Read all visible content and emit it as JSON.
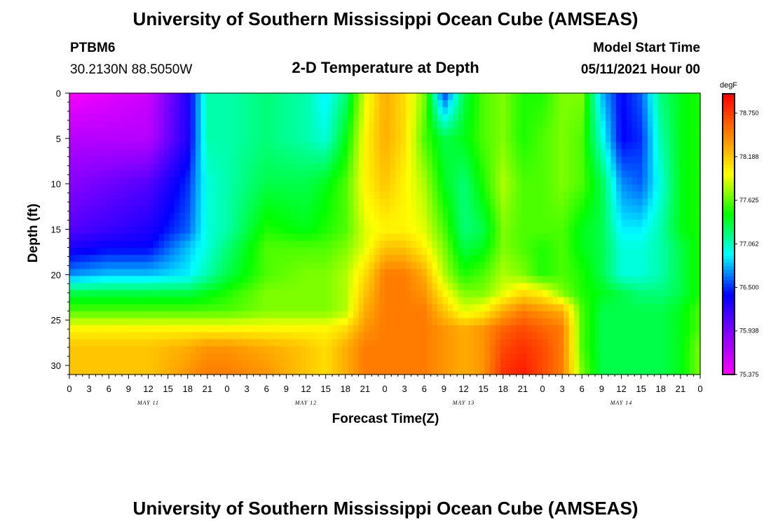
{
  "page": {
    "title_top": "University of Southern Mississippi Ocean Cube (AMSEAS)",
    "title_bottom": "University of Southern Mississippi Ocean Cube (AMSEAS)",
    "station_id": "PTBM6",
    "location": "30.2130N  88.5050W",
    "plot_title": "2-D Temperature at Depth",
    "model_start_label": "Model Start Time",
    "model_start_value": "05/11/2021 Hour 00"
  },
  "chart_data": {
    "type": "heatmap",
    "title": "2-D Temperature at Depth",
    "xlabel": "Forecast Time(Z)",
    "ylabel": "Depth (ft)",
    "xlim": [
      0,
      96
    ],
    "ylim": [
      31,
      0
    ],
    "y_ticks": [
      0,
      5,
      10,
      15,
      20,
      25,
      30
    ],
    "x_ticks": [
      0,
      3,
      6,
      9,
      12,
      15,
      18,
      21,
      24,
      27,
      30,
      33,
      36,
      39,
      42,
      45,
      48,
      51,
      54,
      57,
      60,
      63,
      66,
      69,
      72,
      75,
      78,
      81,
      84,
      87,
      90,
      93,
      96
    ],
    "x_tick_labels": [
      "0",
      "3",
      "6",
      "9",
      "12",
      "15",
      "18",
      "21",
      "0",
      "3",
      "6",
      "9",
      "12",
      "15",
      "18",
      "21",
      "0",
      "3",
      "6",
      "9",
      "12",
      "15",
      "18",
      "21",
      "0",
      "3",
      "6",
      "9",
      "12",
      "15",
      "18",
      "21",
      "0"
    ],
    "date_labels": [
      {
        "text": "MAY 11",
        "hour": 12
      },
      {
        "text": "MAY 12",
        "hour": 36
      },
      {
        "text": "MAY 13",
        "hour": 60
      },
      {
        "text": "MAY 14",
        "hour": 84
      }
    ],
    "colorbar": {
      "unit": "degF",
      "min": 75.375,
      "max": 79.0,
      "tick_values": [
        78.75,
        78.188,
        77.625,
        77.062,
        76.5,
        75.938,
        75.375
      ],
      "tick_labels": [
        "78.750",
        "78.188",
        "77.625",
        "77.062",
        "76.500",
        "75.938",
        "75.375"
      ],
      "colors": [
        "#ff00ff",
        "#8a00ff",
        "#0000ff",
        "#00ffff",
        "#00ff00",
        "#ffff00",
        "#ff8000",
        "#ff0000"
      ]
    },
    "depths": [
      0,
      5,
      10,
      15,
      17,
      20,
      22,
      24,
      26,
      28,
      31
    ],
    "hours": [
      0,
      6,
      12,
      18,
      21,
      24,
      30,
      36,
      39,
      42,
      45,
      48,
      51,
      54,
      57,
      60,
      63,
      66,
      69,
      72,
      75,
      78,
      81,
      84,
      87,
      90,
      93,
      96
    ],
    "temps": [
      [
        75.4,
        75.5,
        75.6,
        76.3,
        77.1,
        77.1,
        77.2,
        77.1,
        76.9,
        77.2,
        77.9,
        78.3,
        78.1,
        77.7,
        76.5,
        77.3,
        77.6,
        77.7,
        77.5,
        77.5,
        77.7,
        77.7,
        76.8,
        76.4,
        76.6,
        77.2,
        77.4,
        77.5
      ],
      [
        75.7,
        75.7,
        75.7,
        76.3,
        77.1,
        77.1,
        77.2,
        77.1,
        77.0,
        77.4,
        78.0,
        78.3,
        78.1,
        77.6,
        77.3,
        77.4,
        77.6,
        77.7,
        77.5,
        77.6,
        77.7,
        77.6,
        77.0,
        76.4,
        76.5,
        77.1,
        77.4,
        77.5
      ],
      [
        75.9,
        76.0,
        76.1,
        76.5,
        77.0,
        77.1,
        77.3,
        77.3,
        77.4,
        77.6,
        78.0,
        78.2,
        78.0,
        77.8,
        77.4,
        77.2,
        77.5,
        77.8,
        77.6,
        77.6,
        77.7,
        77.6,
        77.3,
        76.7,
        76.6,
        77.0,
        77.4,
        77.5
      ],
      [
        76.1,
        76.2,
        76.3,
        76.6,
        77.0,
        77.1,
        77.5,
        77.4,
        77.5,
        77.6,
        77.9,
        78.0,
        78.0,
        77.9,
        77.6,
        77.2,
        77.3,
        77.7,
        77.6,
        77.6,
        77.6,
        77.4,
        77.3,
        76.9,
        76.9,
        77.1,
        77.4,
        77.5
      ],
      [
        76.3,
        76.4,
        76.4,
        76.8,
        77.0,
        77.2,
        77.6,
        77.6,
        77.6,
        77.7,
        77.9,
        78.2,
        78.2,
        78.0,
        77.7,
        77.3,
        77.4,
        77.7,
        77.6,
        77.5,
        77.6,
        77.4,
        77.3,
        77.0,
        77.0,
        77.1,
        77.3,
        77.5
      ],
      [
        76.7,
        76.8,
        76.8,
        76.9,
        77.1,
        77.3,
        77.6,
        77.7,
        77.7,
        77.8,
        78.1,
        78.5,
        78.5,
        78.3,
        77.8,
        77.5,
        77.6,
        77.8,
        77.7,
        77.5,
        77.6,
        77.5,
        77.3,
        77.0,
        77.0,
        77.1,
        77.3,
        77.5
      ],
      [
        77.3,
        77.3,
        77.3,
        77.3,
        77.4,
        77.5,
        77.7,
        77.7,
        77.7,
        77.8,
        78.2,
        78.5,
        78.5,
        78.4,
        78.0,
        77.7,
        77.7,
        77.9,
        78.1,
        78.0,
        77.7,
        77.5,
        77.4,
        77.3,
        77.2,
        77.2,
        77.3,
        77.5
      ],
      [
        77.6,
        77.6,
        77.6,
        77.6,
        77.6,
        77.6,
        77.7,
        77.7,
        77.7,
        77.8,
        78.3,
        78.5,
        78.5,
        78.5,
        78.2,
        77.9,
        78.0,
        78.3,
        78.5,
        78.4,
        78.3,
        77.6,
        77.3,
        77.3,
        77.3,
        77.3,
        77.4,
        77.6
      ],
      [
        78.0,
        78.0,
        78.0,
        78.0,
        78.0,
        78.0,
        78.0,
        78.0,
        78.0,
        78.1,
        78.4,
        78.5,
        78.5,
        78.5,
        78.4,
        78.3,
        78.4,
        78.6,
        78.7,
        78.6,
        78.5,
        77.6,
        77.3,
        77.3,
        77.3,
        77.3,
        77.4,
        77.6
      ],
      [
        78.2,
        78.2,
        78.2,
        78.3,
        78.4,
        78.4,
        78.3,
        78.2,
        78.1,
        78.3,
        78.5,
        78.5,
        78.5,
        78.5,
        78.4,
        78.3,
        78.4,
        78.7,
        78.8,
        78.7,
        78.5,
        77.6,
        77.3,
        77.3,
        77.3,
        77.3,
        77.4,
        77.7
      ],
      [
        78.2,
        78.2,
        78.2,
        78.4,
        78.5,
        78.5,
        78.4,
        78.2,
        78.1,
        78.3,
        78.5,
        78.5,
        78.5,
        78.5,
        78.4,
        78.3,
        78.4,
        78.8,
        78.9,
        78.7,
        78.5,
        77.7,
        77.3,
        77.3,
        77.3,
        77.3,
        77.4,
        77.7
      ]
    ]
  }
}
